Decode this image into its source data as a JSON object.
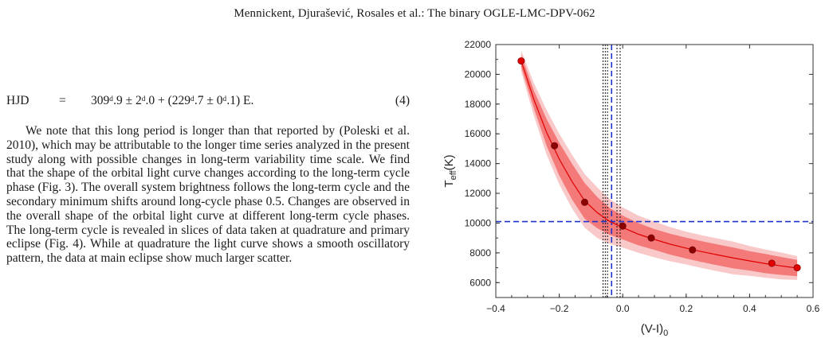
{
  "header": {
    "running_title": "Mennickent, Djurašević, Rosales et al.: The binary OGLE-LMC-DPV-062"
  },
  "equation": {
    "lhs": "HJD",
    "eq": "=",
    "rhs": "309ᵈ.9 ± 2ᵈ.0 + (229ᵈ.7 ± 0ᵈ.1) E.",
    "number": "(4)"
  },
  "paragraph": "We note that this long period is longer than that reported by (Poleski et al. 2010), which may be attributable to the longer time series analyzed in the present study along with possible changes in long-term variability time scale. We find that the shape of the orbital light curve changes according to the long-term cycle phase (Fig. 3). The overall system brightness follows the long-term cycle and the secondary minimum shifts around long-cycle phase 0.5. Changes are observed in the overall shape of the orbital light curve at different long-term cycle phases. The long-term cycle is revealed in slices of data taken at quadrature and primary eclipse (Fig. 4). While at quadrature the light curve shows a smooth oscillatory pattern, the data at main eclipse show much larger scatter.",
  "chart_data": {
    "type": "scatter",
    "xlabel": "(V-I)",
    "xlabel_sub": "0",
    "ylabel": "T",
    "ylabel_sub": "eff",
    "ylabel_unit": "(K)",
    "xlim": [
      -0.4,
      0.6
    ],
    "ylim": [
      5000,
      22000
    ],
    "xticks": [
      -0.4,
      -0.2,
      0.0,
      0.2,
      0.4,
      0.6
    ],
    "xtick_labels": [
      "−0.4",
      "−0.2",
      "0.0",
      "0.2",
      "0.4",
      "0.6"
    ],
    "yticks": [
      6000,
      8000,
      10000,
      12000,
      14000,
      16000,
      18000,
      20000,
      22000
    ],
    "ytick_labels": [
      "6000",
      "8000",
      "10000",
      "12000",
      "14000",
      "16000",
      "18000",
      "20000",
      "22000"
    ],
    "points": [
      {
        "x": -0.32,
        "y": 20900,
        "color": "#e00000"
      },
      {
        "x": -0.215,
        "y": 15200,
        "color": "#8b0000"
      },
      {
        "x": -0.12,
        "y": 11400,
        "color": "#8b0000"
      },
      {
        "x": 0.0,
        "y": 9800,
        "color": "#8b0000"
      },
      {
        "x": 0.09,
        "y": 9000,
        "color": "#8b0000"
      },
      {
        "x": 0.22,
        "y": 8200,
        "color": "#8b0000"
      },
      {
        "x": 0.47,
        "y": 7300,
        "color": "#e00000"
      },
      {
        "x": 0.55,
        "y": 7000,
        "color": "#e00000"
      }
    ],
    "fit_curve": {
      "x": [
        -0.32,
        -0.28,
        -0.24,
        -0.2,
        -0.16,
        -0.12,
        -0.08,
        -0.04,
        0.0,
        0.05,
        0.1,
        0.15,
        0.2,
        0.25,
        0.3,
        0.35,
        0.4,
        0.45,
        0.5,
        0.55
      ],
      "y": [
        20900,
        18300,
        16100,
        14300,
        12800,
        11500,
        10700,
        10100,
        9700,
        9250,
        8900,
        8580,
        8320,
        8080,
        7860,
        7650,
        7460,
        7280,
        7120,
        6980
      ]
    },
    "band_inner_halfwidth": [
      400,
      600,
      900,
      1100,
      1200,
      1200,
      1050,
      900,
      800,
      750,
      700,
      700,
      700,
      700,
      700,
      700,
      650,
      650,
      600,
      550
    ],
    "band_outer_halfwidth": [
      700,
      1100,
      1500,
      1700,
      1800,
      1800,
      1700,
      1500,
      1350,
      1250,
      1200,
      1150,
      1100,
      1100,
      1100,
      1100,
      1000,
      950,
      900,
      800
    ],
    "band_inner_color": "#f47a7a",
    "band_outer_color": "#f9c9c9",
    "curve_color": "#e00000",
    "hline": {
      "y": 10100,
      "color": "#1f33cc",
      "dash": true
    },
    "vline_blue": {
      "x": -0.035,
      "color": "#1f33cc",
      "dash": true
    },
    "vlines_black": [
      -0.062,
      -0.055,
      -0.048,
      -0.018,
      -0.008
    ],
    "grid": false,
    "legend": "none"
  }
}
